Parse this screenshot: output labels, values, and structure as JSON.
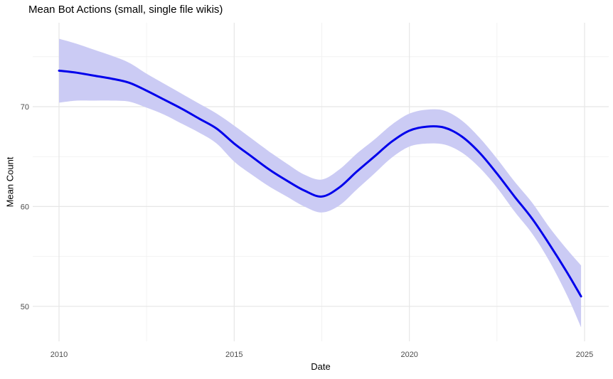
{
  "chart_data": {
    "type": "line",
    "title": "Mean Bot Actions (small, single file wikis)",
    "xlabel": "Date",
    "ylabel": "Mean Count",
    "legend": "none",
    "grid": "major and minor light-gray gridlines on white panel",
    "xlim": [
      2009.25,
      2025.69
    ],
    "ylim": [
      46.5,
      78.4
    ],
    "x_ticks": {
      "major": [
        2010,
        2015,
        2020,
        2025
      ],
      "minor": [
        2012.5,
        2017.5,
        2022.5
      ]
    },
    "y_ticks": {
      "major": [
        50,
        60,
        70
      ],
      "minor": [
        55,
        65,
        75
      ]
    },
    "x": [
      2010,
      2010.5,
      2011,
      2011.5,
      2012,
      2012.5,
      2013,
      2013.5,
      2014,
      2014.5,
      2015,
      2015.5,
      2016,
      2016.5,
      2017,
      2017.5,
      2018,
      2018.5,
      2019,
      2019.5,
      2020,
      2020.5,
      2021,
      2021.5,
      2022,
      2022.5,
      2023,
      2023.5,
      2024,
      2024.5,
      2024.9
    ],
    "series": [
      {
        "name": "mean",
        "values": [
          73.6,
          73.4,
          73.1,
          72.8,
          72.4,
          71.6,
          70.7,
          69.8,
          68.8,
          67.8,
          66.3,
          65.0,
          63.7,
          62.6,
          61.6,
          61.0,
          61.9,
          63.5,
          65.0,
          66.5,
          67.6,
          68.0,
          67.9,
          67.0,
          65.4,
          63.3,
          61.0,
          58.8,
          56.2,
          53.4,
          51.0
        ]
      },
      {
        "name": "ci_upper",
        "values": [
          76.8,
          76.3,
          75.7,
          75.1,
          74.4,
          73.3,
          72.3,
          71.3,
          70.3,
          69.3,
          68.1,
          66.8,
          65.5,
          64.3,
          63.2,
          62.7,
          63.7,
          65.3,
          66.7,
          68.2,
          69.3,
          69.7,
          69.6,
          68.6,
          66.9,
          64.8,
          62.5,
          60.4,
          57.9,
          55.7,
          54.1
        ]
      },
      {
        "name": "ci_lower",
        "values": [
          70.4,
          70.6,
          70.6,
          70.6,
          70.5,
          69.9,
          69.2,
          68.3,
          67.4,
          66.3,
          64.5,
          63.2,
          62.0,
          61.0,
          60.0,
          59.4,
          60.1,
          61.7,
          63.3,
          64.9,
          66.0,
          66.3,
          66.2,
          65.4,
          63.9,
          61.9,
          59.5,
          57.3,
          54.5,
          51.1,
          47.9
        ]
      }
    ],
    "annotations": []
  },
  "colors": {
    "line": "#0000eb",
    "ribbon": "#cbcbf4",
    "grid_major": "#e6e6e6",
    "grid_minor": "#f2f2f2",
    "title_text": "#000000",
    "axis_title_text": "#000000",
    "tick_text": "#4d4d4d",
    "background": "#ffffff"
  }
}
